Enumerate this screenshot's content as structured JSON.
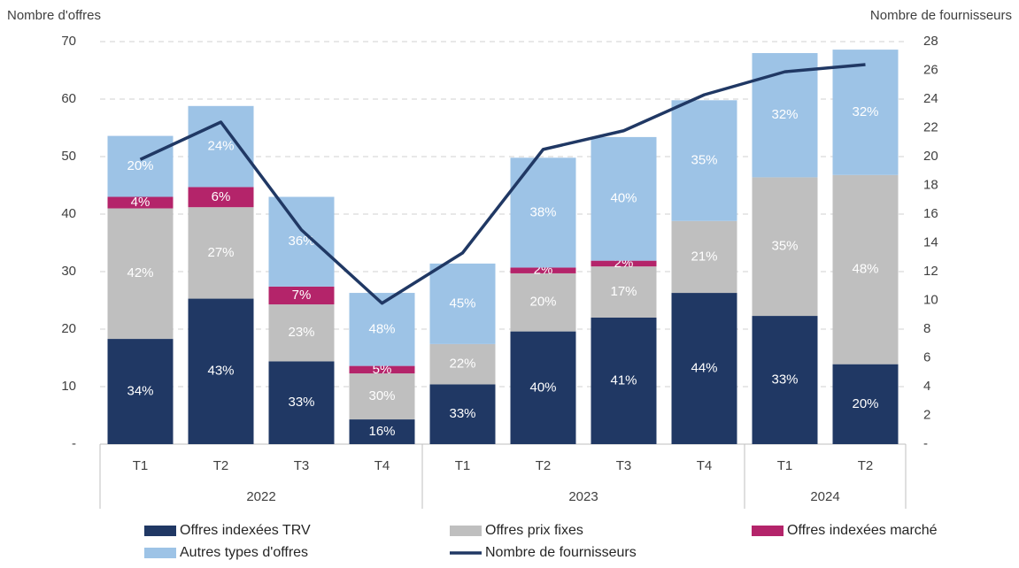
{
  "chart_data": {
    "type": "bar",
    "stacked": true,
    "y_label": "Nombre d'offres",
    "y2_label": "Nombre de fournisseurs",
    "categories": [
      "T1",
      "T2",
      "T3",
      "T4",
      "T1",
      "T2",
      "T3",
      "T4",
      "T1",
      "T2"
    ],
    "category_groups": [
      {
        "label": "2022",
        "size": 4
      },
      {
        "label": "2023",
        "size": 4
      },
      {
        "label": "2024",
        "size": 2
      }
    ],
    "ylim": [
      0,
      70
    ],
    "yticks": [
      {
        "value": 0,
        "label": "-"
      },
      10,
      20,
      30,
      40,
      50,
      60,
      70
    ],
    "y2lim": [
      0,
      28
    ],
    "y2ticks": [
      {
        "value": 0,
        "label": "-"
      },
      2,
      4,
      6,
      8,
      10,
      12,
      14,
      16,
      18,
      20,
      22,
      24,
      26,
      28
    ],
    "grid": true,
    "legend": "bottom",
    "series": [
      {
        "name": "Offres indexées TRV",
        "color": "#203864",
        "values": [
          18.3,
          25.3,
          14.4,
          4.3,
          10.4,
          19.6,
          22.0,
          26.3,
          22.3,
          13.9
        ],
        "value_labels": [
          "34%",
          "43%",
          "33%",
          "16%",
          "33%",
          "40%",
          "41%",
          "44%",
          "33%",
          "20%"
        ]
      },
      {
        "name": "Offres prix fixes",
        "color": "#bfbfbf",
        "values": [
          22.7,
          15.9,
          9.9,
          8.0,
          7.0,
          10.1,
          8.9,
          12.5,
          24.1,
          32.9
        ],
        "value_labels": [
          "42%",
          "27%",
          "23%",
          "30%",
          "22%",
          "20%",
          "17%",
          "21%",
          "35%",
          "48%"
        ]
      },
      {
        "name": "Offres indexées marché",
        "color": "#b4246a",
        "values": [
          2.0,
          3.5,
          3.1,
          1.3,
          0,
          1.0,
          1.0,
          0,
          0,
          0
        ],
        "value_labels": [
          "4%",
          "6%",
          "7%",
          "5%",
          null,
          "2%",
          "2%",
          null,
          null,
          null
        ]
      },
      {
        "name": "Autres types d'offres",
        "color": "#9dc3e6",
        "values": [
          10.6,
          14.1,
          15.6,
          12.7,
          14.0,
          19.1,
          21.5,
          21.0,
          21.6,
          21.8
        ],
        "value_labels": [
          "20%",
          "24%",
          "36%",
          "48%",
          "45%",
          "38%",
          "40%",
          "35%",
          "32%",
          "32%"
        ]
      },
      {
        "name": "Nombre de fournisseurs",
        "type": "line",
        "axis": "y2",
        "color": "#203864",
        "values": [
          19.8,
          22.4,
          14.9,
          9.8,
          13.3,
          20.5,
          21.8,
          24.3,
          25.9,
          26.4
        ]
      }
    ]
  }
}
